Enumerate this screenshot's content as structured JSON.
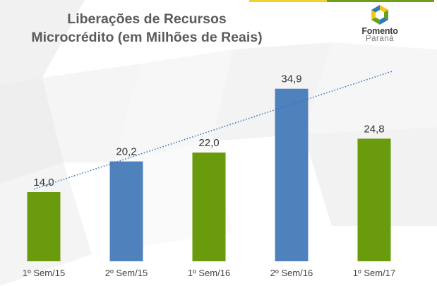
{
  "header": {
    "title_line1": "Liberações de Recursos",
    "title_line2": "Microcrédito (em Milhões de Reais)"
  },
  "logo": {
    "name_line1": "Fomento",
    "name_line2": "Paraná",
    "icon": "fomento-parana-hexagon-logo",
    "colors": [
      "#f2c718",
      "#6e9f1b",
      "#2b7bbd"
    ]
  },
  "chart_data": {
    "type": "bar",
    "categories": [
      "1º Sem/15",
      "2º Sem/15",
      "1º Sem/16",
      "2º Sem/16",
      "1º Sem/17"
    ],
    "values": [
      14.0,
      20.2,
      22.0,
      34.9,
      24.8
    ],
    "value_labels": [
      "14,0",
      "20,2",
      "22,0",
      "34,9",
      "24,8"
    ],
    "bar_colors": [
      "#6a9b0c",
      "#4f81bd",
      "#6a9b0c",
      "#4f81bd",
      "#6a9b0c"
    ],
    "trendline": {
      "style": "dotted",
      "color": "#3b6fc0",
      "from": 14.6,
      "to": 38.6
    },
    "ylim": [
      0,
      40
    ],
    "title": "Liberações de Recursos Microcrédito (em Milhões de Reais)",
    "xlabel": "",
    "ylabel": "",
    "grid": false,
    "legend": "none"
  }
}
